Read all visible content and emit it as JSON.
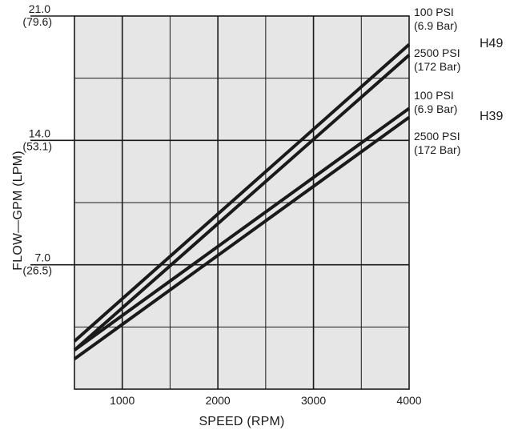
{
  "chart_data": {
    "type": "line",
    "title": "",
    "xlabel": "SPEED (RPM)",
    "ylabel": "FLOW—GPM (LPM)",
    "xlim": [
      500,
      4000
    ],
    "ylim": [
      0,
      21.0
    ],
    "grid": true,
    "x_ticks": [
      {
        "value": 1000,
        "label": "1000"
      },
      {
        "value": 2000,
        "label": "2000"
      },
      {
        "value": 3000,
        "label": "3000"
      },
      {
        "value": 4000,
        "label": "4000"
      }
    ],
    "y_ticks": [
      {
        "value": 21.0,
        "label": "21.0",
        "sublabel": "(79.6)"
      },
      {
        "value": 14.0,
        "label": "14.0",
        "sublabel": "(53.1)"
      },
      {
        "value": 7.0,
        "label": "7.0",
        "sublabel": "(26.5)"
      }
    ],
    "series": [
      {
        "group": "H49",
        "line1": "100 PSI",
        "line2": "(6.9 Bar)",
        "x": [
          500,
          4000
        ],
        "y": [
          2.7,
          19.4
        ]
      },
      {
        "group": "H49",
        "line1": "2500 PSI",
        "line2": "(172 Bar)",
        "x": [
          500,
          4000
        ],
        "y": [
          2.2,
          18.8
        ]
      },
      {
        "group": "H39",
        "line1": "100 PSI",
        "line2": "(6.9 Bar)",
        "x": [
          500,
          4000
        ],
        "y": [
          2.2,
          15.8
        ]
      },
      {
        "group": "H39",
        "line1": "2500 PSI",
        "line2": "(172 Bar)",
        "x": [
          500,
          4000
        ],
        "y": [
          1.7,
          15.3
        ]
      }
    ],
    "groups": [
      {
        "name": "H49"
      },
      {
        "name": "H39"
      }
    ]
  },
  "colors": {
    "plot_background": "#e6e6e6",
    "grid": "#1a1a1a",
    "line": "#1a1a1a"
  }
}
